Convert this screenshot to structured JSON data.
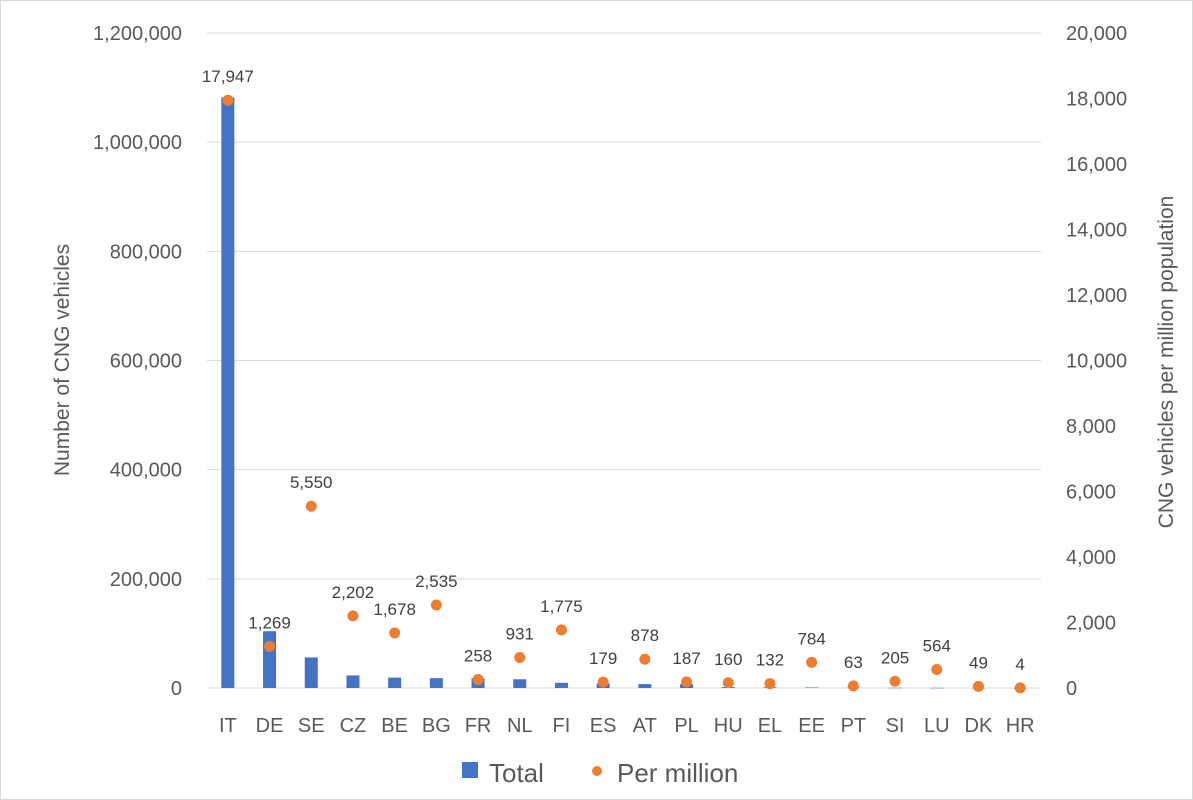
{
  "chart_data": {
    "type": "bar",
    "categories": [
      "IT",
      "DE",
      "SE",
      "CZ",
      "BE",
      "BG",
      "FR",
      "NL",
      "FI",
      "ES",
      "AT",
      "PL",
      "HU",
      "EL",
      "EE",
      "PT",
      "SI",
      "LU",
      "DK",
      "HR"
    ],
    "series": [
      {
        "name": "Total",
        "type": "bar",
        "axis": "left",
        "color": "#4472c4",
        "values": [
          1082000,
          104000,
          56000,
          23000,
          19000,
          18000,
          18000,
          16000,
          9500,
          8500,
          7200,
          7000,
          1600,
          1400,
          1000,
          650,
          430,
          350,
          290,
          16
        ]
      },
      {
        "name": "Per million",
        "type": "scatter",
        "axis": "right",
        "color": "#ed7d31",
        "values": [
          17947,
          1269,
          5550,
          2202,
          1678,
          2535,
          258,
          931,
          1775,
          179,
          878,
          187,
          160,
          132,
          784,
          63,
          205,
          564,
          49,
          4
        ],
        "labels": [
          "17,947",
          "1,269",
          "5,550",
          "2,202",
          "1,678",
          "2,535",
          "258",
          "931",
          "1,775",
          "179",
          "878",
          "187",
          "160",
          "132",
          "784",
          "63",
          "205",
          "564",
          "49",
          "4"
        ]
      }
    ],
    "ylabel": "Number of CNG vehicles",
    "y2label": "CNG vehicles per million population",
    "ylim": [
      0,
      1200000
    ],
    "y2lim": [
      0,
      20000
    ],
    "yticks": [
      "0",
      "200,000",
      "400,000",
      "600,000",
      "800,000",
      "1,000,000",
      "1,200,000"
    ],
    "y2ticks": [
      "0",
      "2,000",
      "4,000",
      "6,000",
      "8,000",
      "10,000",
      "12,000",
      "14,000",
      "16,000",
      "18,000",
      "20,000"
    ],
    "grid": true,
    "legend": {
      "position": "bottom",
      "items": [
        "Total",
        "Per million"
      ]
    },
    "colors": {
      "bar": "#4472c4",
      "point": "#ed7d31",
      "grid": "#d9d9d9",
      "text": "#595959"
    }
  }
}
